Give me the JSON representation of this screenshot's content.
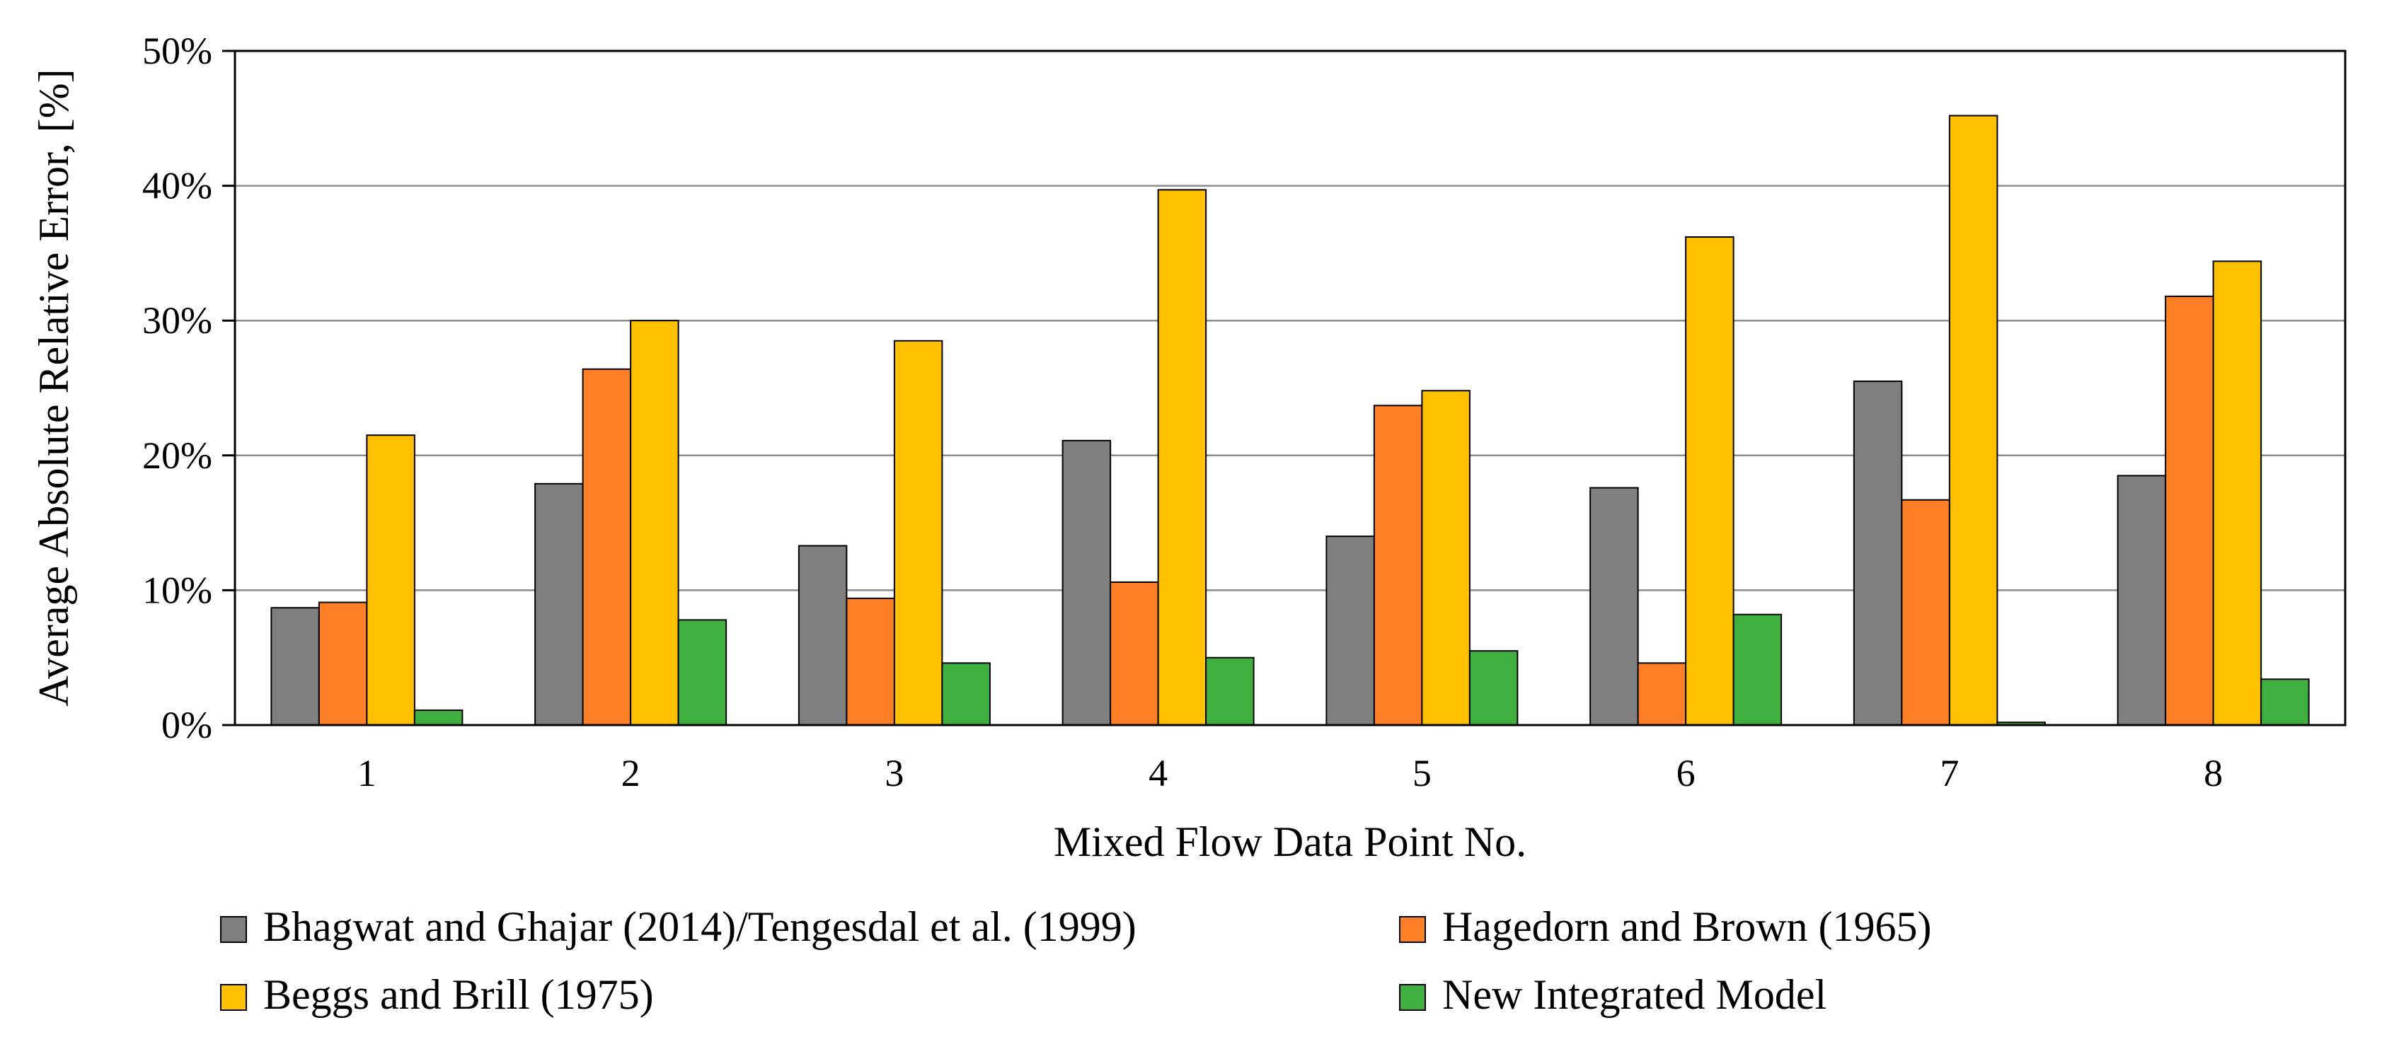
{
  "chart_data": {
    "type": "bar",
    "title": "",
    "xlabel": "Mixed Flow Data Point No.",
    "ylabel": "Average  Absolute  Relative  Error,  [%]",
    "categories": [
      "1",
      "2",
      "3",
      "4",
      "5",
      "6",
      "7",
      "8"
    ],
    "ylim": [
      0,
      50
    ],
    "yticks": [
      0,
      10,
      20,
      30,
      40,
      50
    ],
    "ytick_labels": [
      "0%",
      "10%",
      "20%",
      "30%",
      "40%",
      "50%"
    ],
    "grid": true,
    "legend_position": "bottom",
    "series": [
      {
        "name": "Bhagwat and Ghajar (2014)/Tengesdal et al. (1999)",
        "color": "#7f7f7f",
        "values": [
          8.7,
          17.9,
          13.3,
          21.1,
          14.0,
          17.6,
          25.5,
          18.5
        ]
      },
      {
        "name": "Hagedorn and Brown (1965)",
        "color": "#ff7f27",
        "values": [
          9.1,
          26.4,
          9.4,
          10.6,
          23.7,
          4.6,
          16.7,
          31.8
        ]
      },
      {
        "name": "Beggs and Brill (1975)",
        "color": "#ffc000",
        "values": [
          21.5,
          30.0,
          28.5,
          39.7,
          24.8,
          36.2,
          45.2,
          34.4
        ]
      },
      {
        "name": "New Integrated Model",
        "color": "#3faf3f",
        "values": [
          1.1,
          7.8,
          4.6,
          5.0,
          5.5,
          8.2,
          0.2,
          3.4
        ]
      }
    ]
  }
}
